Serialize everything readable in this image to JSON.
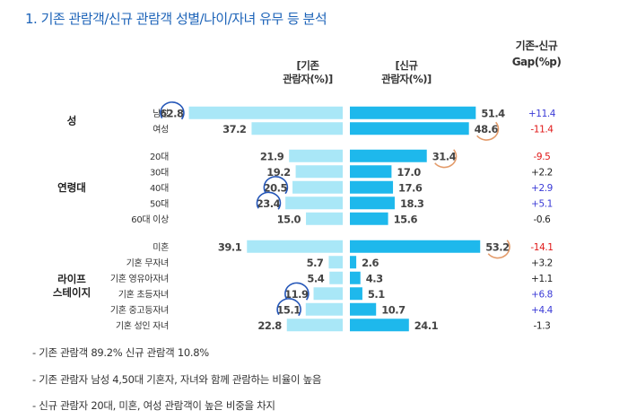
{
  "title": "1. 기존 관람객/신규 관람객 성별/나이/자녀 유무 등 분석",
  "headers": {
    "existing": [
      "[기존",
      "관람자(%)]"
    ],
    "new": [
      "[신규",
      "관람자(%)]"
    ],
    "gap": [
      "기존-신규",
      "Gap(%p)"
    ]
  },
  "notes": [
    "- 기존 관람객 89.2% 신규 관람객 10.8%",
    "- 기존 관람자 남성 4,50대 기혼자, 자녀와 함께 관람하는 비율이 높음",
    "- 신규 관람자 20대, 미혼, 여성 관람객이 높은 비중을 차지"
  ],
  "colors": {
    "title": "#1c63b8",
    "existing_bar": "#a9e7f7",
    "new_bar": "#1eb8ec",
    "positive_gap": "#3a3ad6",
    "negative_gap": "#e01818",
    "neutral_gap": "#222222",
    "circle_blue": "#2456b8",
    "circle_orange": "#e39b6a"
  },
  "chart_data": {
    "type": "bar",
    "title": "기존 관람객/신규 관람객 성별/나이/자녀 유무 등 분석",
    "orientation": "horizontal-butterfly",
    "xlim": [
      0,
      70
    ],
    "groups": [
      {
        "name": "성",
        "rows": [
          {
            "label": "남성",
            "existing": 62.8,
            "new": 51.4,
            "gap": "+11.4",
            "gap_sign": "positive",
            "circle": "existing"
          },
          {
            "label": "여성",
            "existing": 37.2,
            "new": 48.6,
            "gap": "-11.4",
            "gap_sign": "negative",
            "circle": "new"
          }
        ]
      },
      {
        "name": "연령대",
        "rows": [
          {
            "label": "20대",
            "existing": 21.9,
            "new": 31.4,
            "gap": "-9.5",
            "gap_sign": "negative",
            "circle": "new"
          },
          {
            "label": "30대",
            "existing": 19.2,
            "new": 17.0,
            "gap": "+2.2",
            "gap_sign": "neutral",
            "circle": ""
          },
          {
            "label": "40대",
            "existing": 20.5,
            "new": 17.6,
            "gap": "+2.9",
            "gap_sign": "positive",
            "circle": "existing"
          },
          {
            "label": "50대",
            "existing": 23.4,
            "new": 18.3,
            "gap": "+5.1",
            "gap_sign": "positive",
            "circle": "existing"
          },
          {
            "label": "60대 이상",
            "existing": 15.0,
            "new": 15.6,
            "gap": "-0.6",
            "gap_sign": "neutral",
            "circle": ""
          }
        ]
      },
      {
        "name": "라이프\n스테이지",
        "rows": [
          {
            "label": "미혼",
            "existing": 39.1,
            "new": 53.2,
            "gap": "-14.1",
            "gap_sign": "negative",
            "circle": "new"
          },
          {
            "label": "기혼 무자녀",
            "existing": 5.7,
            "new": 2.6,
            "gap": "+3.2",
            "gap_sign": "neutral",
            "circle": ""
          },
          {
            "label": "기혼 영유아자녀",
            "existing": 5.4,
            "new": 4.3,
            "gap": "+1.1",
            "gap_sign": "neutral",
            "circle": ""
          },
          {
            "label": "기혼 초등자녀",
            "existing": 11.9,
            "new": 5.1,
            "gap": "+6.8",
            "gap_sign": "positive",
            "circle": "existing"
          },
          {
            "label": "기혼 중고등자녀",
            "existing": 15.1,
            "new": 10.7,
            "gap": "+4.4",
            "gap_sign": "positive",
            "circle": "existing"
          },
          {
            "label": "기혼 성인 자녀",
            "existing": 22.8,
            "new": 24.1,
            "gap": "-1.3",
            "gap_sign": "neutral",
            "circle": ""
          }
        ]
      }
    ]
  }
}
